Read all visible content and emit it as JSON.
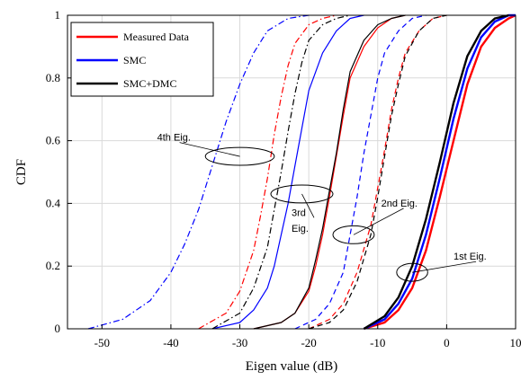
{
  "chart_data": {
    "type": "line",
    "xlabel": "Eigen value (dB)",
    "ylabel": "CDF",
    "xlim": [
      -55,
      10
    ],
    "ylim": [
      0,
      1
    ],
    "xticks": [
      -50,
      -40,
      -30,
      -20,
      -10,
      0,
      10
    ],
    "yticks": [
      0,
      0.2,
      0.4,
      0.6,
      0.8,
      1
    ],
    "grid": true,
    "legend": {
      "placement": "top-left",
      "entries": [
        {
          "label": "Measured Data",
          "color": "#ff0000"
        },
        {
          "label": "SMC",
          "color": "#0000ff"
        },
        {
          "label": "SMC+DMC",
          "color": "#000000"
        }
      ]
    },
    "series": [
      {
        "name": "Measured Data",
        "eig": 1,
        "color": "#ff0000",
        "dash": "solid",
        "x": [
          -12,
          -9,
          -7,
          -5,
          -3,
          -1,
          1,
          3,
          5,
          7,
          9,
          10
        ],
        "y": [
          0,
          0.02,
          0.06,
          0.13,
          0.25,
          0.42,
          0.6,
          0.78,
          0.9,
          0.96,
          0.99,
          1.0
        ]
      },
      {
        "name": "SMC",
        "eig": 1,
        "color": "#0000ff",
        "dash": "solid",
        "x": [
          -12,
          -9,
          -7,
          -5,
          -3,
          -1,
          1,
          3,
          5,
          7,
          9,
          10
        ],
        "y": [
          0,
          0.03,
          0.08,
          0.16,
          0.3,
          0.48,
          0.67,
          0.83,
          0.93,
          0.98,
          1.0,
          1.0
        ]
      },
      {
        "name": "SMC+DMC",
        "eig": 1,
        "color": "#000000",
        "dash": "solid",
        "x": [
          -12,
          -9,
          -7,
          -5,
          -3,
          -1,
          1,
          3,
          5,
          7,
          9
        ],
        "y": [
          0,
          0.04,
          0.1,
          0.2,
          0.35,
          0.53,
          0.72,
          0.87,
          0.95,
          0.99,
          1.0
        ]
      },
      {
        "name": "Measured Data",
        "eig": 2,
        "color": "#ff0000",
        "dash": "dash",
        "x": [
          -20,
          -17,
          -15,
          -13,
          -11,
          -10,
          -9,
          -8,
          -7,
          -6,
          -4,
          -2,
          0
        ],
        "y": [
          0,
          0.03,
          0.08,
          0.18,
          0.33,
          0.45,
          0.57,
          0.7,
          0.8,
          0.88,
          0.95,
          0.99,
          1.0
        ]
      },
      {
        "name": "SMC",
        "eig": 2,
        "color": "#0000ff",
        "dash": "dash",
        "x": [
          -22,
          -19,
          -17,
          -15,
          -14,
          -13,
          -12,
          -11,
          -10,
          -9,
          -7,
          -5,
          -3
        ],
        "y": [
          0,
          0.03,
          0.08,
          0.18,
          0.3,
          0.42,
          0.56,
          0.68,
          0.8,
          0.88,
          0.95,
          0.99,
          1.0
        ]
      },
      {
        "name": "SMC+DMC",
        "eig": 2,
        "color": "#000000",
        "dash": "dash",
        "x": [
          -20,
          -17,
          -15,
          -13,
          -11,
          -10,
          -9,
          -8,
          -7,
          -6,
          -4,
          -2,
          0
        ],
        "y": [
          0,
          0.02,
          0.06,
          0.15,
          0.3,
          0.42,
          0.55,
          0.68,
          0.78,
          0.87,
          0.95,
          0.99,
          1.0
        ]
      },
      {
        "name": "Measured Data",
        "eig": 3,
        "color": "#ff0000",
        "dash": "solid",
        "x": [
          -28,
          -24,
          -22,
          -20,
          -19,
          -18,
          -17,
          -16,
          -15,
          -14,
          -12,
          -10,
          -8,
          -6
        ],
        "y": [
          0,
          0.02,
          0.05,
          0.12,
          0.2,
          0.3,
          0.42,
          0.55,
          0.68,
          0.8,
          0.9,
          0.96,
          0.99,
          1.0
        ]
      },
      {
        "name": "SMC",
        "eig": 3,
        "color": "#0000ff",
        "dash": "solid",
        "x": [
          -34,
          -30,
          -28,
          -26,
          -25,
          -24,
          -23,
          -22,
          -21,
          -20,
          -18,
          -16,
          -14,
          -12
        ],
        "y": [
          0,
          0.02,
          0.06,
          0.13,
          0.2,
          0.3,
          0.4,
          0.52,
          0.64,
          0.76,
          0.88,
          0.95,
          0.99,
          1.0
        ]
      },
      {
        "name": "SMC+DMC",
        "eig": 3,
        "color": "#000000",
        "dash": "solid",
        "x": [
          -28,
          -24,
          -22,
          -20,
          -19,
          -18,
          -17,
          -16,
          -15,
          -14,
          -12,
          -10,
          -8,
          -6
        ],
        "y": [
          0,
          0.02,
          0.05,
          0.13,
          0.22,
          0.32,
          0.44,
          0.56,
          0.7,
          0.82,
          0.92,
          0.97,
          0.99,
          1.0
        ]
      },
      {
        "name": "Measured Data",
        "eig": 4,
        "color": "#ff0000",
        "dash": "dashdot",
        "x": [
          -36,
          -32,
          -30,
          -28,
          -27,
          -26,
          -25,
          -24,
          -23,
          -22,
          -20,
          -18,
          -16
        ],
        "y": [
          0,
          0.05,
          0.12,
          0.25,
          0.36,
          0.48,
          0.62,
          0.74,
          0.84,
          0.91,
          0.97,
          0.99,
          1.0
        ]
      },
      {
        "name": "SMC",
        "eig": 4,
        "color": "#0000ff",
        "dash": "dashdot",
        "x": [
          -52,
          -47,
          -43,
          -40,
          -38,
          -36,
          -34,
          -32,
          -30,
          -28,
          -26,
          -23,
          -20
        ],
        "y": [
          0,
          0.03,
          0.09,
          0.18,
          0.27,
          0.38,
          0.52,
          0.66,
          0.78,
          0.88,
          0.95,
          0.99,
          1.0
        ]
      },
      {
        "name": "SMC+DMC",
        "eig": 4,
        "color": "#000000",
        "dash": "dashdot",
        "x": [
          -34,
          -30,
          -28,
          -26,
          -25,
          -24,
          -23,
          -22,
          -21,
          -20,
          -18,
          -16,
          -14
        ],
        "y": [
          0,
          0.05,
          0.13,
          0.26,
          0.38,
          0.5,
          0.63,
          0.75,
          0.85,
          0.92,
          0.97,
          0.99,
          1.0
        ]
      }
    ],
    "annotations": [
      {
        "text": "4th Eig.",
        "ellipse_center": [
          -30,
          0.55
        ],
        "ellipse_w": 10,
        "ellipse_h": 0.04,
        "label_at": [
          -42,
          0.6
        ]
      },
      {
        "text": "3rd",
        "ellipse_center": [
          -21,
          0.43
        ],
        "ellipse_w": 9,
        "ellipse_h": 0.04,
        "label_at": [
          -22.5,
          0.36
        ]
      },
      {
        "text": "Eig.",
        "label_at": [
          -22.5,
          0.31
        ]
      },
      {
        "text": "2nd Eig.",
        "ellipse_center": [
          -13.5,
          0.3
        ],
        "ellipse_w": 6,
        "ellipse_h": 0.04,
        "label_at": [
          -9.5,
          0.39
        ]
      },
      {
        "text": "1st Eig.",
        "ellipse_center": [
          -5,
          0.18
        ],
        "ellipse_w": 4.5,
        "ellipse_h": 0.04,
        "label_at": [
          1,
          0.22
        ]
      }
    ]
  }
}
